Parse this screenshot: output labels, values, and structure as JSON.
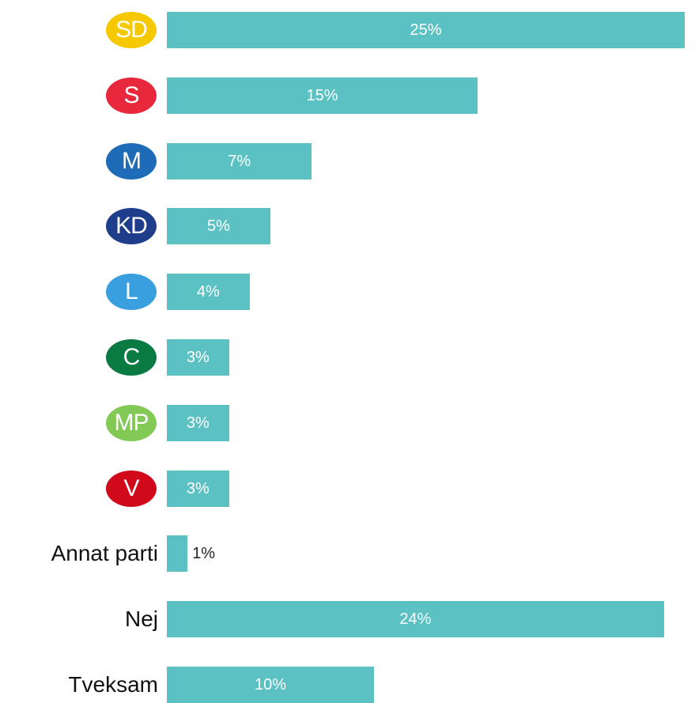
{
  "chart_data": {
    "type": "bar",
    "orientation": "horizontal",
    "title": "",
    "xlabel": "",
    "ylabel": "",
    "xlim": [
      0,
      25
    ],
    "grid": false,
    "legend": "none",
    "bar_color": "#5bc1c3",
    "categories": [
      "SD",
      "S",
      "M",
      "KD",
      "L",
      "C",
      "MP",
      "V",
      "Annat parti",
      "Nej",
      "Tveksam"
    ],
    "values": [
      25,
      15,
      7,
      5,
      4,
      3,
      3,
      3,
      1,
      24,
      10
    ],
    "value_labels": [
      "25%",
      "15%",
      "7%",
      "5%",
      "4%",
      "3%",
      "3%",
      "3%",
      "1%",
      "24%",
      "10%"
    ],
    "category_badges": [
      {
        "category": "SD",
        "color": "#f5c800"
      },
      {
        "category": "S",
        "color": "#e8283d"
      },
      {
        "category": "M",
        "color": "#1e6cb7"
      },
      {
        "category": "KD",
        "color": "#1e3e8b"
      },
      {
        "category": "L",
        "color": "#3a9fdf"
      },
      {
        "category": "C",
        "color": "#0a7a43"
      },
      {
        "category": "MP",
        "color": "#83c955"
      },
      {
        "category": "V",
        "color": "#d0091b"
      }
    ]
  }
}
